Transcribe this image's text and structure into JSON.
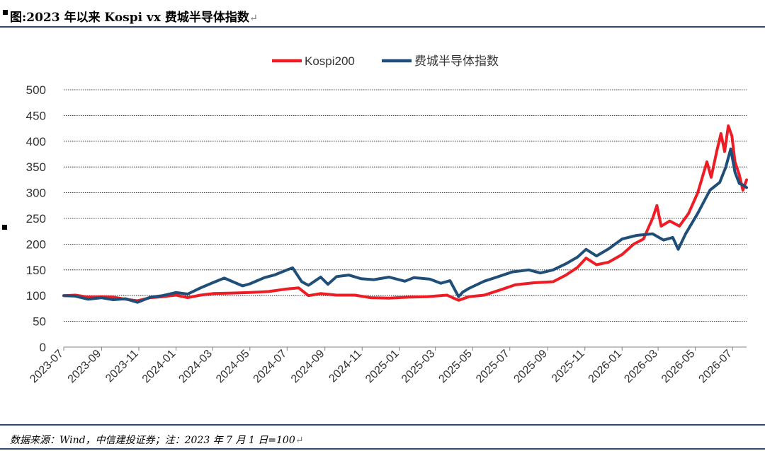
{
  "header": {
    "title": "图:2023 年以来  Kospi vx  费城半导体指数"
  },
  "footer": {
    "source": "数据来源：Wind，中信建投证券；注：2023 年 7 月 1 日=100"
  },
  "colors": {
    "kospi": "#ee1c25",
    "sox": "#1f4e79",
    "rule": "#2f4a6b",
    "grid": "#000000"
  },
  "chart_data": {
    "type": "line",
    "title": "",
    "xlabel": "",
    "ylabel": "",
    "ylim": [
      0,
      500
    ],
    "yticks": [
      0,
      50,
      100,
      150,
      200,
      250,
      300,
      350,
      400,
      450,
      500
    ],
    "xlim": [
      "2023-07-01",
      "2026-07-24"
    ],
    "xticks": [
      "2023-07",
      "2023-09",
      "2023-11",
      "2024-01",
      "2024-03",
      "2024-05",
      "2024-07",
      "2024-09",
      "2024-11",
      "2025-01",
      "2025-03",
      "2025-05",
      "2025-07",
      "2025-09",
      "2025-11",
      "2026-01",
      "2026-03",
      "2026-05",
      "2026-07"
    ],
    "grid": "horizontal dotted",
    "legend_position": "top-center",
    "series": [
      {
        "name": "Kospi200",
        "color": "#ee1c25",
        "points": [
          [
            "2023-07-01",
            100
          ],
          [
            "2023-07-20",
            101
          ],
          [
            "2023-08-10",
            97
          ],
          [
            "2023-09-01",
            98
          ],
          [
            "2023-09-20",
            97
          ],
          [
            "2023-10-10",
            93
          ],
          [
            "2023-10-30",
            90
          ],
          [
            "2023-11-20",
            96
          ],
          [
            "2023-12-10",
            98
          ],
          [
            "2024-01-01",
            101
          ],
          [
            "2024-01-20",
            96
          ],
          [
            "2024-02-10",
            101
          ],
          [
            "2024-03-01",
            104
          ],
          [
            "2024-04-01",
            105
          ],
          [
            "2024-05-01",
            106
          ],
          [
            "2024-06-01",
            108
          ],
          [
            "2024-07-01",
            113
          ],
          [
            "2024-07-20",
            115
          ],
          [
            "2024-08-05",
            100
          ],
          [
            "2024-08-25",
            104
          ],
          [
            "2024-09-20",
            101
          ],
          [
            "2024-10-20",
            101
          ],
          [
            "2024-11-15",
            96
          ],
          [
            "2024-12-15",
            95
          ],
          [
            "2025-01-15",
            97
          ],
          [
            "2025-02-15",
            98
          ],
          [
            "2025-03-20",
            101
          ],
          [
            "2025-04-08",
            91
          ],
          [
            "2025-04-25",
            98
          ],
          [
            "2025-05-20",
            101
          ],
          [
            "2025-06-15",
            111
          ],
          [
            "2025-07-10",
            121
          ],
          [
            "2025-08-10",
            125
          ],
          [
            "2025-09-10",
            127
          ],
          [
            "2025-10-01",
            140
          ],
          [
            "2025-10-20",
            155
          ],
          [
            "2025-11-03",
            173
          ],
          [
            "2025-11-20",
            160
          ],
          [
            "2025-12-10",
            165
          ],
          [
            "2026-01-01",
            180
          ],
          [
            "2026-01-20",
            200
          ],
          [
            "2026-02-05",
            210
          ],
          [
            "2026-02-20",
            250
          ],
          [
            "2026-02-27",
            275
          ],
          [
            "2026-03-06",
            235
          ],
          [
            "2026-03-20",
            245
          ],
          [
            "2026-04-05",
            235
          ],
          [
            "2026-04-20",
            260
          ],
          [
            "2026-05-05",
            300
          ],
          [
            "2026-05-20",
            360
          ],
          [
            "2026-05-27",
            330
          ],
          [
            "2026-06-05",
            380
          ],
          [
            "2026-06-12",
            415
          ],
          [
            "2026-06-18",
            380
          ],
          [
            "2026-06-24",
            430
          ],
          [
            "2026-06-30",
            410
          ],
          [
            "2026-07-05",
            360
          ],
          [
            "2026-07-12",
            335
          ],
          [
            "2026-07-18",
            305
          ],
          [
            "2026-07-24",
            325
          ]
        ]
      },
      {
        "name": "费城半导体指数",
        "color": "#1f4e79",
        "points": [
          [
            "2023-07-01",
            100
          ],
          [
            "2023-07-20",
            99
          ],
          [
            "2023-08-10",
            93
          ],
          [
            "2023-09-01",
            96
          ],
          [
            "2023-09-20",
            92
          ],
          [
            "2023-10-10",
            94
          ],
          [
            "2023-10-30",
            87
          ],
          [
            "2023-11-20",
            97
          ],
          [
            "2023-12-10",
            100
          ],
          [
            "2024-01-01",
            106
          ],
          [
            "2024-01-20",
            103
          ],
          [
            "2024-02-10",
            115
          ],
          [
            "2024-03-01",
            125
          ],
          [
            "2024-03-20",
            134
          ],
          [
            "2024-04-19",
            119
          ],
          [
            "2024-05-01",
            123
          ],
          [
            "2024-05-25",
            135
          ],
          [
            "2024-06-10",
            140
          ],
          [
            "2024-07-01",
            150
          ],
          [
            "2024-07-10",
            154
          ],
          [
            "2024-07-25",
            127
          ],
          [
            "2024-08-05",
            120
          ],
          [
            "2024-08-25",
            136
          ],
          [
            "2024-09-06",
            122
          ],
          [
            "2024-09-20",
            137
          ],
          [
            "2024-10-10",
            140
          ],
          [
            "2024-10-30",
            133
          ],
          [
            "2024-11-20",
            131
          ],
          [
            "2024-12-15",
            136
          ],
          [
            "2025-01-10",
            128
          ],
          [
            "2025-01-25",
            135
          ],
          [
            "2025-02-20",
            132
          ],
          [
            "2025-03-10",
            124
          ],
          [
            "2025-03-25",
            129
          ],
          [
            "2025-04-08",
            98
          ],
          [
            "2025-04-15",
            107
          ],
          [
            "2025-04-25",
            114
          ],
          [
            "2025-05-20",
            128
          ],
          [
            "2025-06-15",
            138
          ],
          [
            "2025-07-05",
            146
          ],
          [
            "2025-08-01",
            150
          ],
          [
            "2025-08-20",
            144
          ],
          [
            "2025-09-10",
            150
          ],
          [
            "2025-10-01",
            162
          ],
          [
            "2025-10-20",
            175
          ],
          [
            "2025-11-03",
            190
          ],
          [
            "2025-11-20",
            177
          ],
          [
            "2025-12-10",
            191
          ],
          [
            "2026-01-01",
            210
          ],
          [
            "2026-01-25",
            217
          ],
          [
            "2026-02-20",
            220
          ],
          [
            "2026-03-10",
            208
          ],
          [
            "2026-03-25",
            213
          ],
          [
            "2026-04-03",
            190
          ],
          [
            "2026-04-15",
            220
          ],
          [
            "2026-05-05",
            260
          ],
          [
            "2026-05-25",
            305
          ],
          [
            "2026-06-10",
            320
          ],
          [
            "2026-06-20",
            350
          ],
          [
            "2026-06-28",
            385
          ],
          [
            "2026-07-05",
            340
          ],
          [
            "2026-07-12",
            318
          ],
          [
            "2026-07-18",
            315
          ],
          [
            "2026-07-24",
            310
          ]
        ]
      }
    ]
  }
}
